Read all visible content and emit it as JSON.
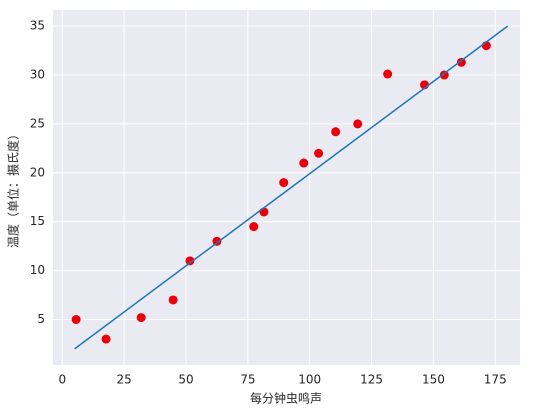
{
  "chart_data": {
    "type": "scatter",
    "xlabel": "每分钟虫鸣声",
    "ylabel": "温度（单位：摄氏度）",
    "xlim": [
      -3.75,
      185
    ],
    "ylim": [
      0.35,
      36.65
    ],
    "xticks": [
      0,
      25,
      50,
      75,
      100,
      125,
      150,
      175
    ],
    "yticks": [
      5,
      10,
      15,
      20,
      25,
      30,
      35
    ],
    "grid": true,
    "background": "#eaeaf2",
    "series": [
      {
        "type": "scatter",
        "color": "#e8000b",
        "x": [
          5.6,
          17.7,
          31.9,
          44.8,
          51.6,
          62.5,
          77.4,
          81.5,
          89.5,
          97.6,
          103.6,
          110.5,
          119.4,
          131.5,
          146.4,
          154.4,
          161.3,
          171.4
        ],
        "values": [
          5.0,
          3.0,
          5.2,
          7.0,
          11.0,
          13.0,
          14.5,
          16.0,
          19.0,
          21.0,
          22.0,
          24.2,
          25.0,
          30.1,
          29.0,
          30.0,
          31.3,
          33.0
        ]
      },
      {
        "type": "line",
        "color": "#1f77b4",
        "x": [
          5,
          180
        ],
        "values": [
          2,
          35
        ]
      }
    ]
  }
}
